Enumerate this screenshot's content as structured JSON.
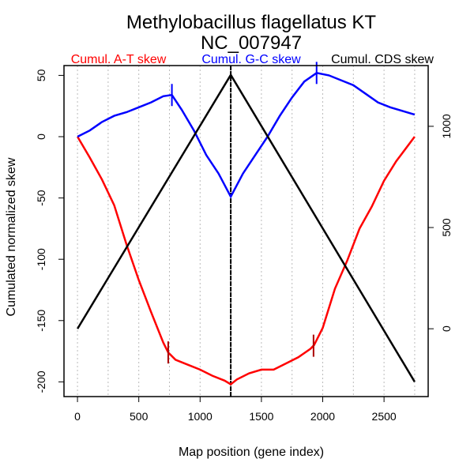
{
  "chart_data": {
    "type": "line",
    "title": "Methylobacillus flagellatus KT",
    "subtitle": "NC_007947",
    "xlabel": "Map position (gene index)",
    "ylabel": "Cumulated normalized skew",
    "xlim": [
      -110,
      2860
    ],
    "ylim_left": [
      -212,
      58
    ],
    "ylim_right": [
      -335,
      1300
    ],
    "grid": "vertical dotted every 250",
    "x_ticks": [
      "0",
      "500",
      "1000",
      "1500",
      "2000",
      "2500"
    ],
    "x_tick_values": [
      0,
      500,
      1000,
      1500,
      2000,
      2500
    ],
    "y_ticks_left": [
      "50",
      "0",
      "-50",
      "-100",
      "-150",
      "-200"
    ],
    "y_tick_values_left": [
      50,
      0,
      -50,
      -100,
      -150,
      -200
    ],
    "y_ticks_right": [
      "1000",
      "500",
      "0"
    ],
    "y_tick_values_right": [
      1000,
      500,
      0
    ],
    "terminus_line_x": 1250,
    "legend": [
      {
        "label": "Cumul. A-T skew",
        "color": "#ff0000"
      },
      {
        "label": "Cumul. G-C skew",
        "color": "#0000ff"
      },
      {
        "label": "Cumul. CDS skew",
        "color": "#000000"
      }
    ],
    "series": [
      {
        "name": "Cumul. A-T skew",
        "axis": "left",
        "color": "#ff0000",
        "x": [
          0,
          100,
          200,
          300,
          400,
          500,
          600,
          700,
          740,
          800,
          900,
          1000,
          1100,
          1200,
          1250,
          1300,
          1400,
          1500,
          1600,
          1700,
          1800,
          1900,
          1930,
          2000,
          2100,
          2200,
          2300,
          2400,
          2500,
          2600,
          2750
        ],
        "y": [
          0,
          -17,
          -35,
          -56,
          -88,
          -117,
          -143,
          -168,
          -176,
          -182,
          -186,
          -190,
          -195,
          -199,
          -202,
          -198,
          -193,
          -190,
          -190,
          -185,
          -180,
          -173,
          -170,
          -156,
          -124,
          -101,
          -75,
          -57,
          -36,
          -20,
          0
        ],
        "markers_x": [
          740,
          1925
        ]
      },
      {
        "name": "Cumul. G-C skew",
        "axis": "left",
        "color": "#0000ff",
        "x": [
          0,
          100,
          200,
          300,
          400,
          500,
          600,
          700,
          770,
          850,
          950,
          1050,
          1150,
          1250,
          1350,
          1450,
          1550,
          1650,
          1750,
          1850,
          1950,
          2050,
          2150,
          2250,
          2350,
          2450,
          2550,
          2650,
          2750
        ],
        "y": [
          0,
          5,
          12,
          17,
          20,
          24,
          28,
          33,
          34,
          22,
          5,
          -15,
          -30,
          -49,
          -30,
          -15,
          0,
          17,
          32,
          45,
          52,
          50,
          46,
          42,
          35,
          28,
          24,
          21,
          18
        ],
        "markers_x": [
          770,
          1950
        ]
      },
      {
        "name": "Cumul. CDS skew",
        "axis": "right",
        "color": "#000000",
        "x": [
          0,
          1250,
          2750
        ],
        "y": [
          0,
          1254,
          -262
        ]
      }
    ]
  }
}
